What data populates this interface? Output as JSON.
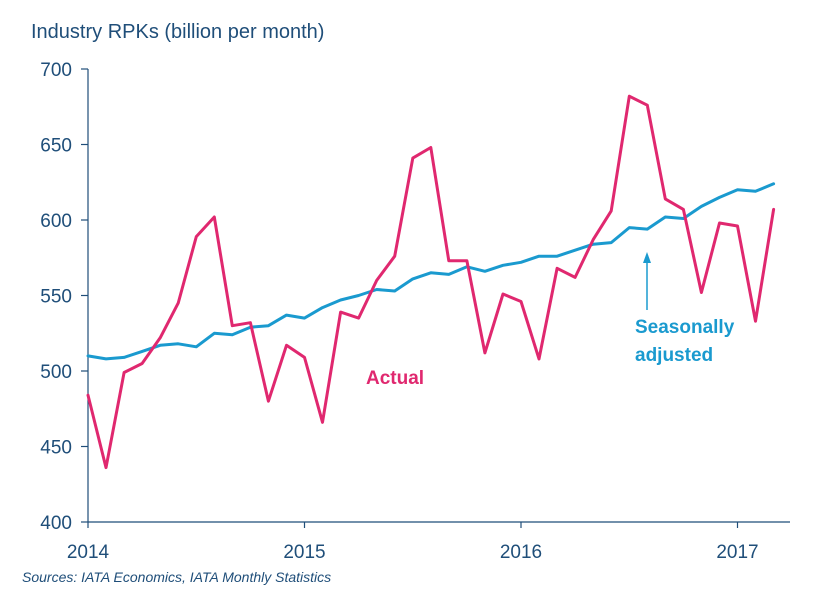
{
  "chart_data": {
    "type": "line",
    "title": "",
    "ylabel": "Industry RPKs (billion per month)",
    "xlabel": "",
    "ylim": [
      400,
      700
    ],
    "yticks": [
      400,
      450,
      500,
      550,
      600,
      650,
      700
    ],
    "xticks": [
      "2014",
      "2015",
      "2016",
      "2017"
    ],
    "x_start": "2014-01",
    "series": [
      {
        "name": "Actual",
        "color": "#E0286F",
        "values": [
          484,
          436,
          499,
          505,
          522,
          545,
          589,
          602,
          530,
          532,
          480,
          517,
          509,
          466,
          539,
          535,
          560,
          576,
          641,
          648,
          573,
          573,
          512,
          551,
          546,
          508,
          568,
          562,
          587,
          606,
          682,
          676,
          614,
          607,
          552,
          598,
          596,
          533,
          607
        ]
      },
      {
        "name": "Seasonally adjusted",
        "color": "#1A9ACF",
        "values": [
          510,
          508,
          509,
          513,
          517,
          518,
          516,
          525,
          524,
          529,
          530,
          537,
          535,
          542,
          547,
          550,
          554,
          553,
          561,
          565,
          564,
          569,
          566,
          570,
          572,
          576,
          576,
          580,
          584,
          585,
          595,
          594,
          602,
          601,
          609,
          615,
          620,
          619,
          624
        ]
      }
    ],
    "annotations": [
      {
        "text": "Actual",
        "series": "Actual"
      },
      {
        "text": "Seasonally",
        "series": "Seasonally adjusted"
      },
      {
        "text": "adjusted",
        "series": "Seasonally adjusted"
      }
    ],
    "source": "Sources: IATA Economics, IATA Monthly Statistics",
    "grid": false,
    "legend": "none"
  }
}
